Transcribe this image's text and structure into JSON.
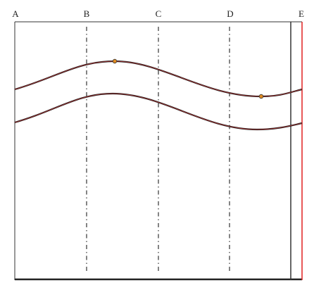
{
  "labels": [
    "A",
    "B",
    "C",
    "D",
    "E"
  ]
}
